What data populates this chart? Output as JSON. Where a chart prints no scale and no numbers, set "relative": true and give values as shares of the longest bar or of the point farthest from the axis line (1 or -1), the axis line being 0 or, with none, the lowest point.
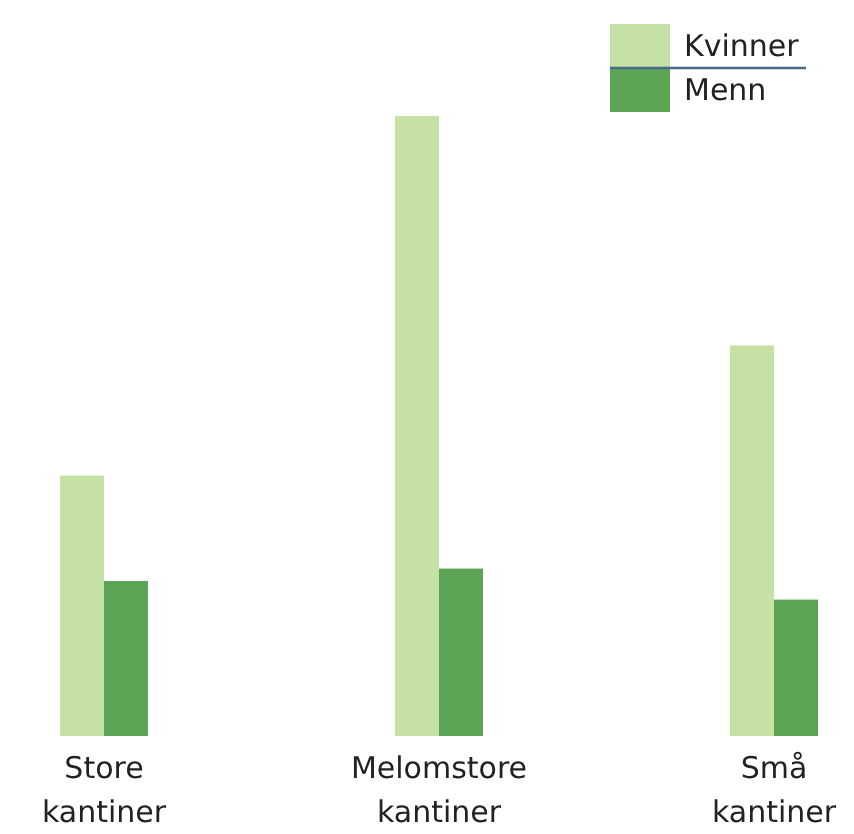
{
  "chart_data": {
    "type": "bar",
    "relative": true,
    "categories": [
      "Store kantiner",
      "Melomstore kantiner",
      "Små kantiner"
    ],
    "series": [
      {
        "name": "Kvinner",
        "color": "#c5e1a5",
        "values": [
          0.42,
          1,
          0.63
        ]
      },
      {
        "name": "Menn",
        "color": "#5aa454",
        "values": [
          0.25,
          0.27,
          0.22
        ]
      }
    ],
    "legend": "top right"
  }
}
